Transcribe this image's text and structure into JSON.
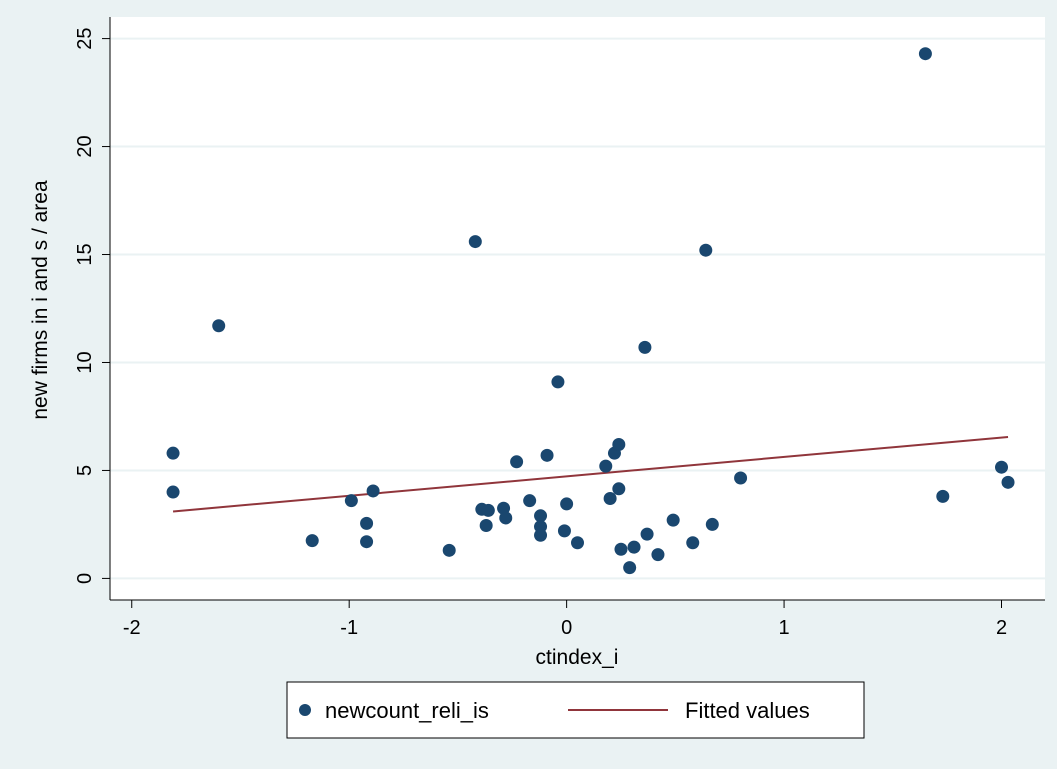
{
  "chart_data": {
    "type": "scatter",
    "xlabel": "ctindex_i",
    "ylabel": "new firms in i and s / area",
    "xlim": [
      -2.1,
      2.2
    ],
    "ylim": [
      -1,
      26
    ],
    "xticks": [
      -2,
      -1,
      0,
      1,
      2
    ],
    "yticks": [
      0,
      5,
      10,
      15,
      20,
      25
    ],
    "grid": true,
    "legend_position": "bottom",
    "colors": {
      "points": "#1a476f",
      "fit": "#90353b",
      "plot_background": "#ffffff",
      "page_background": "#eaf2f3",
      "gridline": "#eaf2f3"
    },
    "series": [
      {
        "name": "newcount_reli_is",
        "kind": "scatter",
        "points": [
          [
            -1.81,
            5.8
          ],
          [
            -1.81,
            4.0
          ],
          [
            -1.6,
            11.7
          ],
          [
            -1.17,
            1.75
          ],
          [
            -0.99,
            3.6
          ],
          [
            -0.92,
            2.55
          ],
          [
            -0.92,
            1.7
          ],
          [
            -0.89,
            4.05
          ],
          [
            -0.54,
            1.3
          ],
          [
            -0.42,
            15.6
          ],
          [
            -0.39,
            3.2
          ],
          [
            -0.37,
            2.45
          ],
          [
            -0.36,
            3.15
          ],
          [
            -0.29,
            3.25
          ],
          [
            -0.28,
            2.8
          ],
          [
            -0.23,
            5.4
          ],
          [
            -0.17,
            3.6
          ],
          [
            -0.12,
            2.9
          ],
          [
            -0.12,
            2.4
          ],
          [
            -0.12,
            2.0
          ],
          [
            -0.09,
            5.7
          ],
          [
            -0.04,
            9.1
          ],
          [
            -0.01,
            2.2
          ],
          [
            0.0,
            3.45
          ],
          [
            0.05,
            1.65
          ],
          [
            0.18,
            5.2
          ],
          [
            0.2,
            3.7
          ],
          [
            0.22,
            5.8
          ],
          [
            0.24,
            6.2
          ],
          [
            0.24,
            4.15
          ],
          [
            0.25,
            1.35
          ],
          [
            0.29,
            0.5
          ],
          [
            0.31,
            1.45
          ],
          [
            0.36,
            10.7
          ],
          [
            0.37,
            2.05
          ],
          [
            0.42,
            1.1
          ],
          [
            0.49,
            2.7
          ],
          [
            0.58,
            1.65
          ],
          [
            0.64,
            15.2
          ],
          [
            0.67,
            2.5
          ],
          [
            0.8,
            4.65
          ],
          [
            1.65,
            24.3
          ],
          [
            1.73,
            3.8
          ],
          [
            2.0,
            5.15
          ],
          [
            2.03,
            4.45
          ]
        ]
      },
      {
        "name": "Fitted values",
        "kind": "line",
        "points": [
          [
            -1.81,
            3.1
          ],
          [
            2.03,
            6.55
          ]
        ]
      }
    ]
  }
}
